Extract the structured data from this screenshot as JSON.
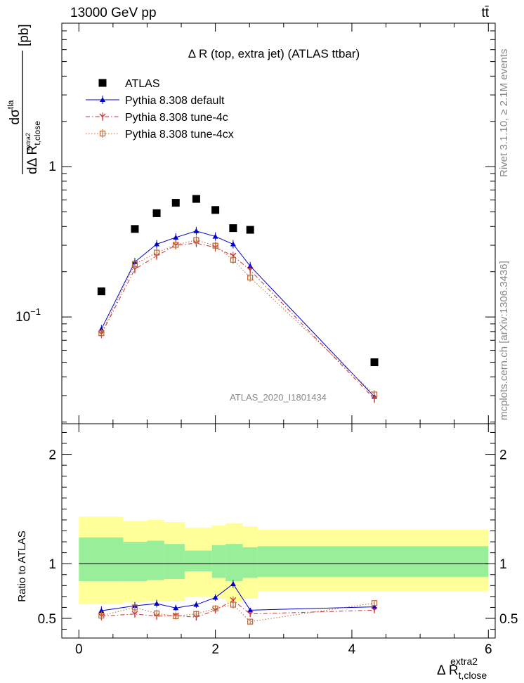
{
  "header": {
    "left": "13000 GeV pp",
    "right": "tt̄"
  },
  "side_labels": {
    "rivet": "Rivet 3.1.10, ≥ 2.1M events",
    "mcplots": "mcplots.cern.ch [arXiv:1306.3436]"
  },
  "chart_data": [
    {
      "type": "scatter",
      "panel": "main",
      "title": "Δ R (top, extra jet) (ATLAS ttbar)",
      "watermark": "ATLAS_2020_I1801434",
      "ylabel": "dσ^tla / dΔ R_t,close^extra2 [pb]",
      "ylabel_parts": {
        "numerator": "dσ",
        "num_sup": "tla",
        "denominator": "dΔ R",
        "den_sub": "t,close",
        "den_sup": "extra2",
        "unit": "[pb]"
      },
      "yscale": "log",
      "ylim": [
        0.0195,
        9.0
      ],
      "xlim": [
        -0.25,
        6.1
      ],
      "y_ticks": [
        {
          "value": 0.1,
          "label": "10",
          "exp": "−1"
        },
        {
          "value": 1,
          "label": "1",
          "exp": ""
        }
      ],
      "legend_placement": "top-left",
      "x": [
        0.33,
        0.82,
        1.14,
        1.42,
        1.72,
        2.0,
        2.26,
        2.51,
        4.33
      ],
      "series": [
        {
          "name": "ATLAS",
          "color": "#000000",
          "marker": "square",
          "line": "none",
          "values": [
            0.148,
            0.385,
            0.49,
            0.575,
            0.61,
            0.515,
            0.39,
            0.38,
            0.05
          ]
        },
        {
          "name": "Pythia 8.308 default",
          "color": "#0000cc",
          "marker": "triangle",
          "line": "solid",
          "values": [
            0.083,
            0.232,
            0.305,
            0.338,
            0.373,
            0.343,
            0.305,
            0.218,
            0.0295
          ]
        },
        {
          "name": "Pythia 8.308 tune-4c",
          "color": "#cc3333",
          "marker": "star",
          "line": "dashdot",
          "values": [
            0.077,
            0.208,
            0.255,
            0.3,
            0.31,
            0.29,
            0.255,
            0.205,
            0.0285
          ]
        },
        {
          "name": "Pythia 8.308 tune-4cx",
          "color": "#bb6633",
          "marker": "open-square",
          "line": "dotted",
          "values": [
            0.078,
            0.225,
            0.268,
            0.302,
            0.325,
            0.298,
            0.24,
            0.183,
            0.0305
          ]
        }
      ]
    },
    {
      "type": "line",
      "panel": "ratio",
      "ylabel": "Ratio to ATLAS",
      "ylim": [
        0.32,
        2.28
      ],
      "xlim": [
        -0.25,
        6.1
      ],
      "xlabel": "Δ R_t,close^extra2",
      "xlabel_parts": {
        "main": "Δ R",
        "sub": "t,close",
        "sup": "extra2"
      },
      "x_ticks": [
        0,
        2,
        4,
        6
      ],
      "y_ticks": [
        0.5,
        1,
        2
      ],
      "reference": 1,
      "bands": {
        "edges": [
          0,
          0.65,
          1.0,
          1.25,
          1.55,
          1.95,
          2.15,
          2.4,
          2.62,
          6.0
        ],
        "yellow_hi": [
          1.43,
          1.39,
          1.4,
          1.38,
          1.33,
          1.35,
          1.37,
          1.34,
          1.31
        ],
        "yellow_lo": [
          0.63,
          0.65,
          0.66,
          0.66,
          0.7,
          0.68,
          0.65,
          0.68,
          0.75
        ],
        "green_hi": [
          1.24,
          1.2,
          1.21,
          1.18,
          1.12,
          1.17,
          1.18,
          1.15,
          1.16
        ],
        "green_lo": [
          0.84,
          0.84,
          0.85,
          0.86,
          0.93,
          0.87,
          0.84,
          0.87,
          0.88
        ],
        "colors": {
          "yellow": "#ffff99",
          "green": "#99ee99"
        }
      },
      "x": [
        0.33,
        0.82,
        1.14,
        1.42,
        1.72,
        2.0,
        2.26,
        2.51,
        4.33
      ],
      "series": [
        {
          "name": "Pythia 8.308 default",
          "color": "#0000cc",
          "marker": "triangle",
          "line": "solid",
          "values": [
            0.57,
            0.615,
            0.635,
            0.595,
            0.625,
            0.69,
            0.815,
            0.575,
            0.605
          ],
          "errors": [
            0.04,
            0.035,
            0.035,
            0.03,
            0.03,
            0.03,
            0.035,
            0.02,
            0.02
          ]
        },
        {
          "name": "Pythia 8.308 tune-4c",
          "color": "#cc3333",
          "marker": "star",
          "line": "dashdot",
          "values": [
            0.52,
            0.54,
            0.52,
            0.525,
            0.51,
            0.575,
            0.665,
            0.54,
            0.575
          ],
          "errors": [
            0.04,
            0.035,
            0.035,
            0.03,
            0.03,
            0.03,
            0.035,
            0.02,
            0.02
          ]
        },
        {
          "name": "Pythia 8.308 tune-4cx",
          "color": "#bb6633",
          "marker": "open-square",
          "line": "dotted",
          "values": [
            0.525,
            0.6,
            0.545,
            0.52,
            0.54,
            0.59,
            0.625,
            0.47,
            0.64
          ],
          "errors": [
            0.04,
            0.035,
            0.035,
            0.03,
            0.03,
            0.03,
            0.035,
            0.02,
            0.02
          ]
        }
      ]
    }
  ]
}
